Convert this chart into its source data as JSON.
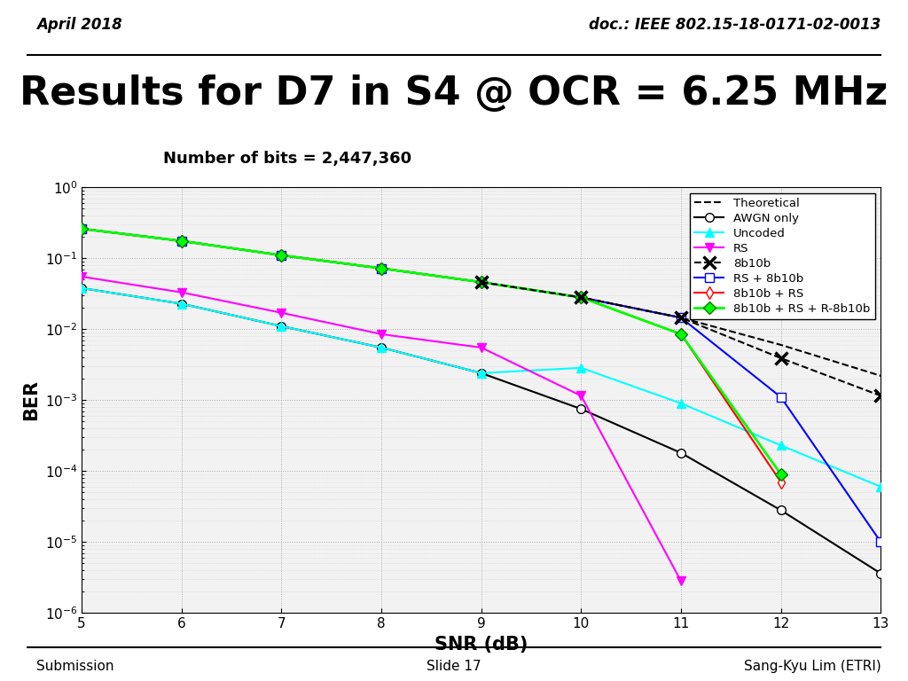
{
  "title": "Results for D7 in S4 @ OCR = 6.25 MHz",
  "subtitle": "Number of bits = 2,447,360",
  "header_left": "April 2018",
  "header_right": "doc.: IEEE 802.15-18-0171-02-0013",
  "footer_left": "Submission",
  "footer_center": "Slide 17",
  "footer_right": "Sang-Kyu Lim (ETRI)",
  "xlabel": "SNR (dB)",
  "ylabel": "BER",
  "theoretical_snr": [
    5,
    6,
    7,
    8,
    9,
    10,
    11,
    12,
    13
  ],
  "theoretical": [
    0.26,
    0.175,
    0.11,
    0.072,
    0.046,
    0.028,
    0.0145,
    0.006,
    0.0022
  ],
  "awgn_only_snr": [
    5,
    6,
    7,
    8,
    9,
    10,
    11,
    12,
    13
  ],
  "awgn_only": [
    0.0379,
    0.0228,
    0.011,
    0.0055,
    0.0024,
    0.00075,
    0.00018,
    2.8e-05,
    3.6e-06
  ],
  "uncoded_snr": [
    5,
    6,
    7,
    8,
    9,
    10,
    11,
    12,
    13
  ],
  "uncoded": [
    0.0379,
    0.0228,
    0.011,
    0.0055,
    0.0024,
    0.00285,
    0.0009,
    0.00023,
    6e-05
  ],
  "rs_snr": [
    5,
    6,
    7,
    8,
    9,
    10,
    11
  ],
  "rs": [
    0.055,
    0.033,
    0.017,
    0.0085,
    0.0055,
    0.00115,
    2.8e-06
  ],
  "b8b10b_snr": [
    9,
    10,
    11,
    12,
    13
  ],
  "b8b10b": [
    0.046,
    0.028,
    0.0145,
    0.0039,
    0.00115
  ],
  "rs_8b10b_snr": [
    5,
    6,
    7,
    8,
    9,
    10,
    11,
    12,
    13
  ],
  "rs_8b10b": [
    0.26,
    0.175,
    0.11,
    0.072,
    0.046,
    0.028,
    0.0145,
    0.0011,
    1e-05
  ],
  "b8b10b_rs_snr": [
    5,
    6,
    7,
    8,
    9,
    10,
    11,
    12
  ],
  "b8b10b_rs": [
    0.26,
    0.175,
    0.11,
    0.072,
    0.046,
    0.028,
    0.0085,
    7e-05
  ],
  "combo_snr": [
    5,
    6,
    7,
    8,
    9,
    10,
    11,
    12
  ],
  "combo": [
    0.26,
    0.175,
    0.11,
    0.072,
    0.046,
    0.028,
    0.0085,
    9e-05
  ]
}
